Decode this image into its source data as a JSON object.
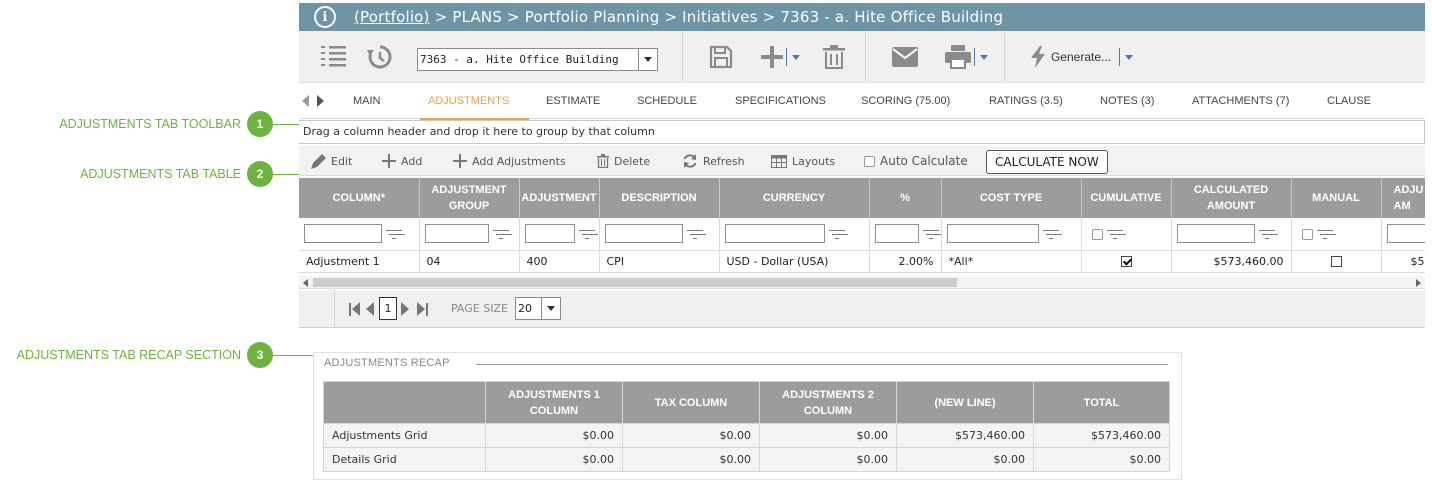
{
  "callouts": [
    {
      "number": "1",
      "label": "ADJUSTMENTS TAB TOOLBAR"
    },
    {
      "number": "2",
      "label": "ADJUSTMENTS TAB TABLE"
    },
    {
      "number": "3",
      "label": "ADJUSTMENTS TAB RECAP SECTION"
    }
  ],
  "titlebar": {
    "icon": "info-icon",
    "breadcrumb_link": "(Portfolio)",
    "breadcrumb_rest": " > PLANS > Portfolio Planning > Initiatives > 7363 - a. Hite Office Building"
  },
  "toolbar": {
    "record_selected": "7363 - a. Hite Office Building",
    "generate_label": "Generate...",
    "icons": [
      "list-numbered-icon",
      "history-icon",
      "save-icon",
      "add-icon",
      "delete-icon",
      "email-icon",
      "print-icon",
      "lightning-icon"
    ]
  },
  "tabs": [
    {
      "label": "MAIN",
      "active": false
    },
    {
      "label": "ADJUSTMENTS",
      "active": true
    },
    {
      "label": "ESTIMATE",
      "active": false
    },
    {
      "label": "SCHEDULE",
      "active": false
    },
    {
      "label": "SPECIFICATIONS",
      "active": false
    },
    {
      "label": "SCORING (75.00)",
      "active": false
    },
    {
      "label": "RATINGS (3.5)",
      "active": false
    },
    {
      "label": "NOTES (3)",
      "active": false
    },
    {
      "label": "ATTACHMENTS (7)",
      "active": false
    },
    {
      "label": "CLAUSE",
      "active": false
    }
  ],
  "group_bar_text": "Drag a column header and drop it here to group by that column",
  "grid_toolbar": {
    "edit": "Edit",
    "add": "Add",
    "add_adjustments": "Add Adjustments",
    "delete": "Delete",
    "refresh": "Refresh",
    "layouts": "Layouts",
    "auto_calculate": "Auto Calculate",
    "calculate_now": "CALCULATE NOW"
  },
  "grid": {
    "headers": [
      "COLUMN*",
      "ADJUSTMENT GROUP",
      "ADJUSTMENT",
      "DESCRIPTION",
      "CURRENCY",
      "%",
      "COST TYPE",
      "CUMULATIVE",
      "CALCULATED AMOUNT",
      "MANUAL",
      "ADJU AM"
    ],
    "rows": [
      {
        "column": "Adjustment 1",
        "adjustment_group": "04",
        "adjustment": "400",
        "description": "CPI",
        "currency": "USD - Dollar (USA)",
        "percent": "2.00%",
        "cost_type": "*All*",
        "cumulative": true,
        "calculated_amount": "$573,460.00",
        "manual": false,
        "adjusted_amount": "$5"
      }
    ]
  },
  "pager": {
    "current_page": "1",
    "page_size_label": "PAGE SIZE",
    "page_size": "20"
  },
  "recap": {
    "title": "ADJUSTMENTS RECAP",
    "headers": [
      "",
      "ADJUSTMENTS 1 COLUMN",
      "TAX COLUMN",
      "ADJUSTMENTS 2 COLUMN",
      "(NEW LINE)",
      "TOTAL"
    ],
    "rows": [
      {
        "label": "Adjustments Grid",
        "values": [
          "$0.00",
          "$0.00",
          "$0.00",
          "$573,460.00",
          "$573,460.00"
        ]
      },
      {
        "label": "Details Grid",
        "values": [
          "$0.00",
          "$0.00",
          "$0.00",
          "$0.00",
          "$0.00"
        ]
      }
    ]
  },
  "colors": {
    "titlebar": "#6f94a6",
    "active_tab": "#e8a24a",
    "callout": "#6db33f",
    "grid_header": "#9c9c9c"
  }
}
